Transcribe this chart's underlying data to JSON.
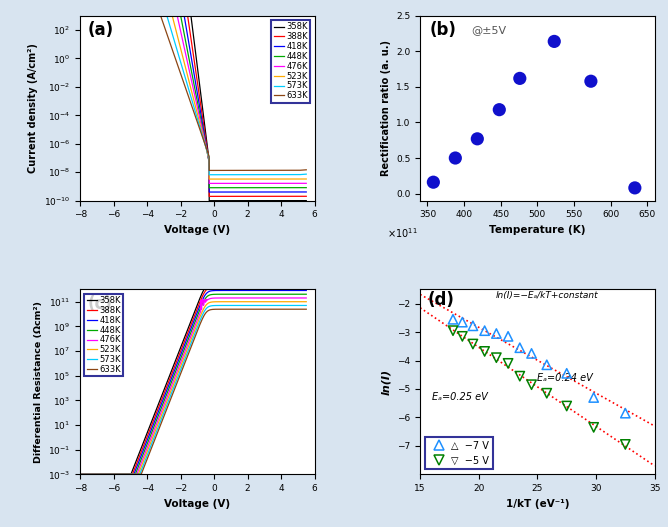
{
  "panel_a": {
    "label": "(a)",
    "temperatures": [
      358,
      388,
      418,
      448,
      476,
      523,
      573,
      633
    ],
    "colors": [
      "#000000",
      "#ff0000",
      "#0000ff",
      "#00aa00",
      "#ff00ff",
      "#ffaa00",
      "#00ccff",
      "#8b4513"
    ],
    "xlabel": "Voltage (V)",
    "ylabel": "Current density (A/cm²)",
    "xlim": [
      -8,
      6
    ],
    "ylim_log": [
      -10,
      3
    ],
    "xticks": [
      -8,
      -6,
      -4,
      -2,
      0,
      2,
      4,
      6
    ]
  },
  "panel_b": {
    "label": "(b)",
    "annotation": "@±5V",
    "temperatures": [
      358,
      388,
      418,
      448,
      476,
      523,
      573,
      633
    ],
    "rect_ratios": [
      0.16,
      0.5,
      0.77,
      1.18,
      1.62,
      2.14,
      1.58,
      0.08
    ],
    "xlabel": "Temperature (K)",
    "ylabel": "Rectification ratio (a. u.)",
    "xlim": [
      340,
      660
    ],
    "ylim": [
      -0.1,
      2.5
    ],
    "xticks": [
      350,
      400,
      450,
      500,
      550,
      600,
      650
    ],
    "yticks": [
      0.0,
      0.5,
      1.0,
      1.5,
      2.0,
      2.5
    ],
    "dot_color": "#1010cc"
  },
  "panel_c": {
    "label": "(c)",
    "temperatures": [
      358,
      388,
      418,
      448,
      476,
      523,
      573,
      633
    ],
    "colors": [
      "#000000",
      "#ff0000",
      "#0000ff",
      "#00aa00",
      "#ff00ff",
      "#ffaa00",
      "#00ccff",
      "#8b4513"
    ],
    "xlabel": "Voltage (V)",
    "ylabel": "Differential Resistance (Ωcm²)",
    "xlim": [
      -8,
      6
    ],
    "ylim_log": [
      -3,
      12
    ],
    "xticks": [
      -8,
      -6,
      -4,
      -2,
      0,
      2,
      4,
      6
    ]
  },
  "panel_d": {
    "label": "(d)",
    "annotation": "ln(I)=−Eₐ/kT+constant",
    "ea1_label": "Eₐ=0.24 eV",
    "ea2_label": "Eₐ=0.25 eV",
    "series1_label": "△  −7 V",
    "series2_label": "▽  −5 V",
    "series1_color": "#1e90ff",
    "series2_color": "#008000",
    "fitline_color": "#ff0000",
    "xlabel": "1/kT (eV⁻¹)",
    "ylabel": "ln(I)",
    "xlim": [
      15,
      35
    ],
    "ylim": [
      -8,
      -1.5
    ],
    "xticks": [
      15,
      20,
      25,
      30,
      35
    ],
    "yticks": [
      -7,
      -6,
      -5,
      -4,
      -3,
      -2
    ],
    "series1_x": [
      17.8,
      18.6,
      19.5,
      20.5,
      21.5,
      22.5,
      23.5,
      24.5,
      25.8,
      27.5,
      29.8,
      32.5
    ],
    "series1_y": [
      -2.55,
      -2.65,
      -2.78,
      -2.95,
      -3.05,
      -3.15,
      -3.55,
      -3.75,
      -4.15,
      -4.45,
      -5.3,
      -5.85
    ],
    "series2_x": [
      17.8,
      18.6,
      19.5,
      20.5,
      21.5,
      22.5,
      23.5,
      24.5,
      25.8,
      27.5,
      29.8,
      32.5
    ],
    "series2_y": [
      -2.95,
      -3.15,
      -3.42,
      -3.68,
      -3.9,
      -4.1,
      -4.55,
      -4.85,
      -5.15,
      -5.6,
      -6.35,
      -6.95
    ]
  },
  "bg_color": "#d8e4f0",
  "fig_bg": "#d8e4f0"
}
